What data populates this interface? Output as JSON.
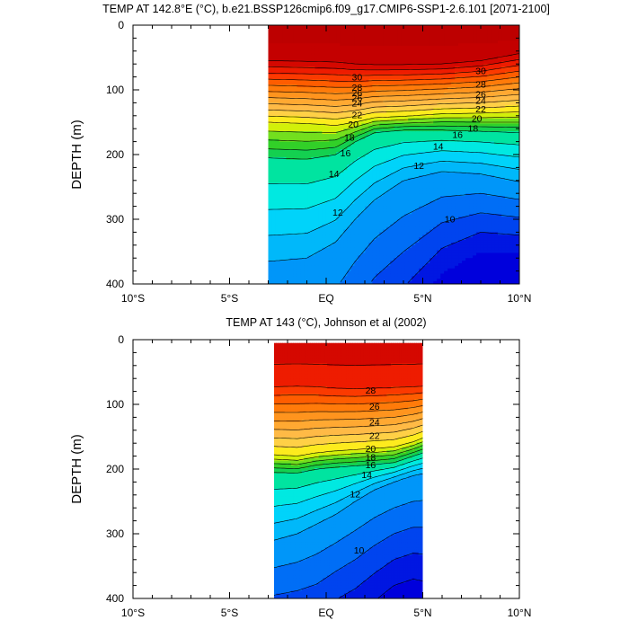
{
  "chart_data": [
    {
      "type": "heatmap",
      "subtype": "filled-contour depth-latitude section",
      "title": "TEMP AT 142.8°E (°C), b.e21.BSSP126cmip6.f09_g17.CMIP6-SSP1-2.6.101 [2071-2100]",
      "ylabel": "DEPTH (m)",
      "x_ticks": [
        "10°S",
        "5°S",
        "EQ",
        "5°N",
        "10°N"
      ],
      "y_ticks": [
        "0",
        "100",
        "200",
        "300",
        "400"
      ],
      "xlim": [
        -10,
        10
      ],
      "ylim": [
        400,
        0
      ],
      "y_reversed": true,
      "data_lat_range": [
        -3,
        10
      ],
      "contour_interval": 1,
      "contour_levels": [
        9,
        10,
        11,
        12,
        13,
        14,
        15,
        16,
        17,
        18,
        19,
        20,
        21,
        22,
        23,
        24,
        25,
        26,
        27,
        28,
        29,
        30
      ],
      "contour_labels": [
        {
          "lat": 1.6,
          "depth": 80,
          "text": "30"
        },
        {
          "lat": 1.6,
          "depth": 96,
          "text": "28"
        },
        {
          "lat": 1.6,
          "depth": 104,
          "text": "26"
        },
        {
          "lat": 1.6,
          "depth": 112,
          "text": "26"
        },
        {
          "lat": 1.6,
          "depth": 120,
          "text": "24"
        },
        {
          "lat": 1.6,
          "depth": 138,
          "text": "22"
        },
        {
          "lat": 1.4,
          "depth": 153,
          "text": "20"
        },
        {
          "lat": 1.2,
          "depth": 173,
          "text": "18"
        },
        {
          "lat": 1.0,
          "depth": 197,
          "text": "16"
        },
        {
          "lat": 0.4,
          "depth": 229,
          "text": "14"
        },
        {
          "lat": 0.6,
          "depth": 289,
          "text": "12"
        },
        {
          "lat": 8.0,
          "depth": 70,
          "text": "30"
        },
        {
          "lat": 8.0,
          "depth": 91,
          "text": "28"
        },
        {
          "lat": 8.0,
          "depth": 106,
          "text": "26"
        },
        {
          "lat": 8.0,
          "depth": 116,
          "text": "24"
        },
        {
          "lat": 8.0,
          "depth": 129,
          "text": "22"
        },
        {
          "lat": 7.8,
          "depth": 144,
          "text": "20"
        },
        {
          "lat": 7.6,
          "depth": 159,
          "text": "18"
        },
        {
          "lat": 6.8,
          "depth": 169,
          "text": "16"
        },
        {
          "lat": 5.8,
          "depth": 187,
          "text": "14"
        },
        {
          "lat": 4.8,
          "depth": 217,
          "text": "12"
        },
        {
          "lat": 6.4,
          "depth": 299,
          "text": "10"
        }
      ],
      "ref_curves": {
        "lats": [
          -3,
          -1,
          0.5,
          1.5,
          2.5,
          4,
          6,
          8,
          10
        ],
        "d30": [
          55,
          56,
          57,
          60,
          61,
          61,
          60,
          55,
          44
        ],
        "d20": [
          150,
          152,
          155,
          150,
          143,
          141,
          137,
          136,
          134
        ],
        "d16": [
          205,
          207,
          200,
          180,
          166,
          162,
          162,
          164,
          166
        ],
        "d12": [
          365,
          360,
          335,
          300,
          270,
          240,
          226,
          230,
          242
        ],
        "d10": [
          500,
          500,
          480,
          430,
          390,
          350,
          305,
          290,
          297
        ]
      }
    },
    {
      "type": "heatmap",
      "subtype": "filled-contour depth-latitude section",
      "title": "TEMP AT 143 (°C), Johnson et al (2002)",
      "ylabel": "DEPTH (m)",
      "x_ticks": [
        "10°S",
        "5°S",
        "EQ",
        "5°N",
        "10°N"
      ],
      "y_ticks": [
        "0",
        "100",
        "200",
        "300",
        "400"
      ],
      "xlim": [
        -10,
        10
      ],
      "ylim": [
        400,
        0
      ],
      "y_reversed": true,
      "data_lat_range": [
        -2.7,
        5
      ],
      "data_depth_range": [
        5,
        400
      ],
      "contour_interval": 1,
      "contour_levels": [
        8,
        9,
        10,
        11,
        12,
        13,
        14,
        15,
        16,
        17,
        18,
        19,
        20,
        21,
        22,
        23,
        24,
        25,
        26,
        27,
        28,
        29
      ],
      "contour_labels": [
        {
          "lat": 2.3,
          "depth": 78,
          "text": "28"
        },
        {
          "lat": 2.5,
          "depth": 103,
          "text": "26"
        },
        {
          "lat": 2.5,
          "depth": 127,
          "text": "24"
        },
        {
          "lat": 2.5,
          "depth": 148,
          "text": "22"
        },
        {
          "lat": 2.3,
          "depth": 168,
          "text": "20"
        },
        {
          "lat": 2.3,
          "depth": 181,
          "text": "18"
        },
        {
          "lat": 2.3,
          "depth": 193,
          "text": "16"
        },
        {
          "lat": 2.1,
          "depth": 208,
          "text": "14"
        },
        {
          "lat": 1.5,
          "depth": 238,
          "text": "12"
        },
        {
          "lat": 1.7,
          "depth": 325,
          "text": "10"
        }
      ],
      "ref_curves": {
        "lats": [
          -2.7,
          -1.5,
          -0.5,
          0.5,
          1.5,
          2.5,
          3.5,
          4.5,
          5
        ],
        "d28": [
          73,
          72,
          73,
          75,
          76,
          75,
          74,
          73,
          72
        ],
        "d20": [
          178,
          180,
          175,
          172,
          170,
          168,
          166,
          158,
          152
        ],
        "d16": [
          205,
          206,
          200,
          197,
          195,
          193,
          190,
          180,
          175
        ],
        "d12": [
          310,
          300,
          285,
          270,
          250,
          232,
          220,
          210,
          207
        ],
        "d10": [
          395,
          388,
          378,
          358,
          340,
          318,
          300,
          290,
          290
        ]
      }
    }
  ]
}
